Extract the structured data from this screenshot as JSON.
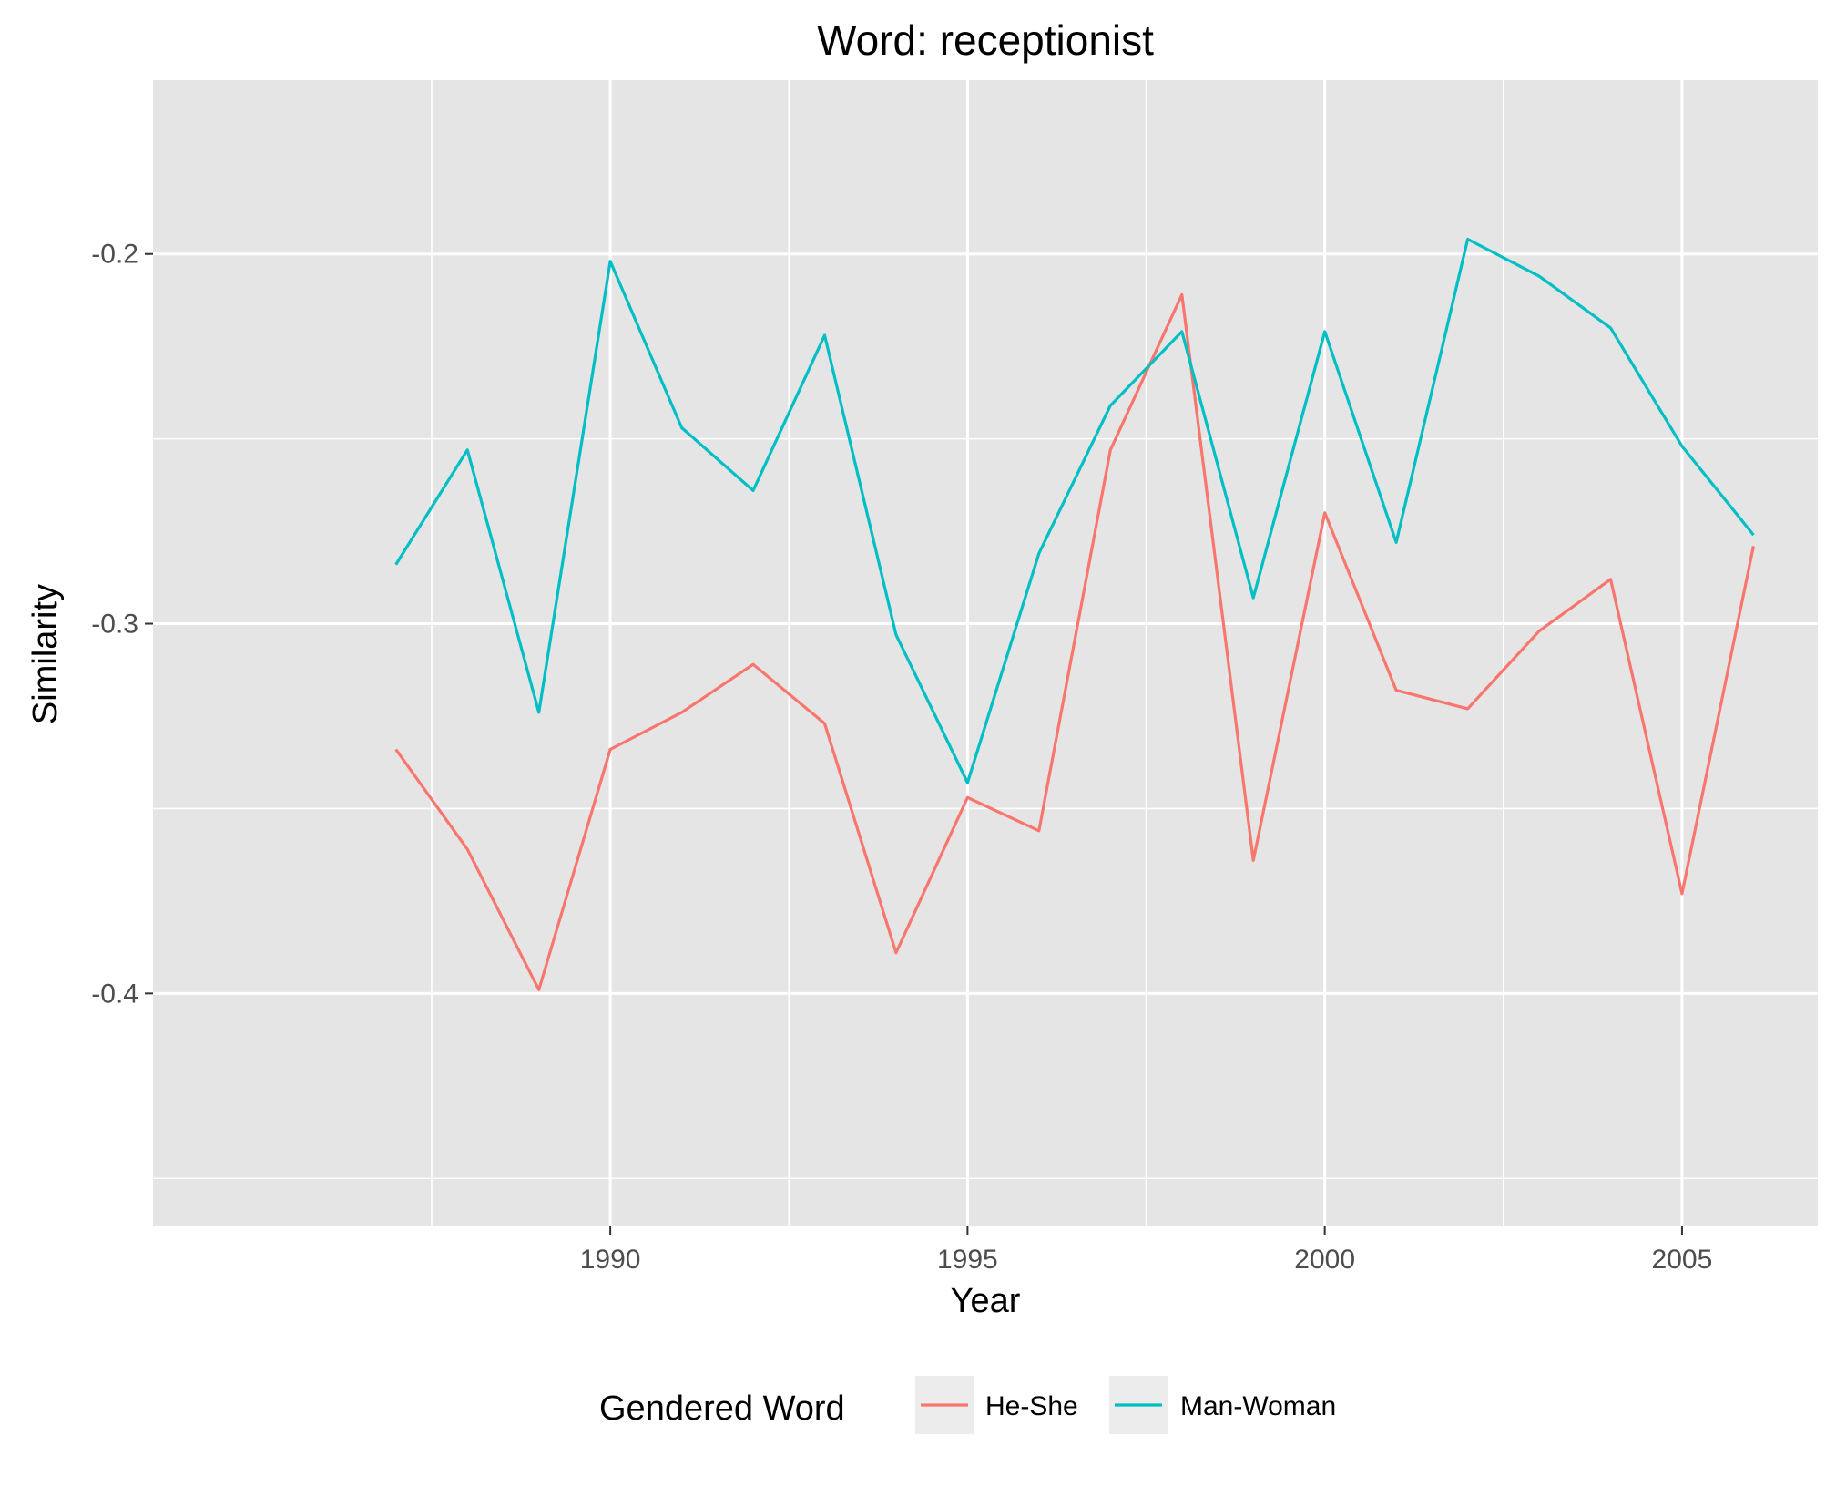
{
  "chart_data": {
    "type": "line",
    "title": "Word: receptionist",
    "xlabel": "Year",
    "ylabel": "Similarity",
    "x": [
      1987,
      1988,
      1989,
      1990,
      1991,
      1992,
      1993,
      1994,
      1995,
      1996,
      1997,
      1998,
      1999,
      2000,
      2001,
      2002,
      2003,
      2004,
      2005,
      2006
    ],
    "xlim": [
      1983.6,
      2006.9
    ],
    "ylim": [
      -0.463,
      -0.153
    ],
    "x_ticks": [
      1990,
      1995,
      2000,
      2005
    ],
    "x_tick_labels": [
      "1990",
      "1995",
      "2000",
      "2005"
    ],
    "y_ticks": [
      -0.4,
      -0.3,
      -0.2
    ],
    "y_tick_labels": [
      "-0.4",
      "-0.3",
      "-0.2"
    ],
    "grid": true,
    "legend": {
      "title": "Gendered Word",
      "placement": "bottom"
    },
    "series": [
      {
        "name": "He-She",
        "color": "#F8766D",
        "values": [
          -0.334,
          -0.361,
          -0.399,
          -0.334,
          -0.324,
          -0.311,
          -0.327,
          -0.389,
          -0.347,
          -0.356,
          -0.253,
          -0.211,
          -0.364,
          -0.27,
          -0.318,
          -0.323,
          -0.302,
          -0.288,
          -0.373,
          -0.279
        ]
      },
      {
        "name": "Man-Woman",
        "color": "#00BFC4",
        "values": [
          -0.284,
          -0.253,
          -0.324,
          -0.202,
          -0.247,
          -0.264,
          -0.222,
          -0.303,
          -0.343,
          -0.281,
          -0.241,
          -0.221,
          -0.293,
          -0.221,
          -0.278,
          -0.196,
          -0.206,
          -0.22,
          -0.252,
          -0.276
        ]
      }
    ]
  }
}
